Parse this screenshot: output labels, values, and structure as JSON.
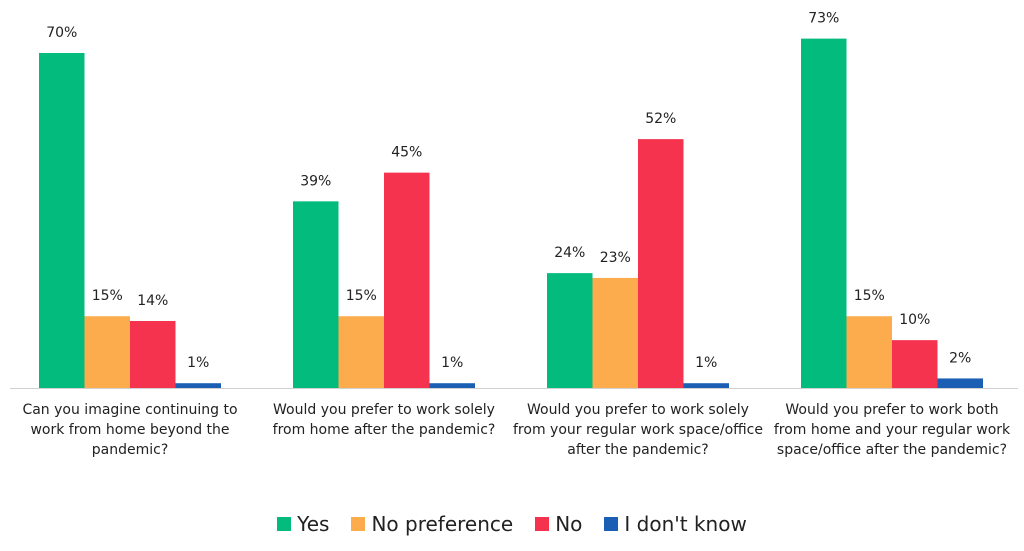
{
  "chart_data": {
    "type": "bar",
    "categories": [
      "Can you imagine continuing to work from home beyond the pandemic?",
      "Would you prefer to work solely from home after the pandemic?",
      "Would you prefer to work solely from your regular work space/office after the pandemic?",
      "Would you prefer to work both from home and your regular work space/office after the pandemic?"
    ],
    "series": [
      {
        "name": "Yes",
        "color": "#03bb7c",
        "values": [
          70,
          39,
          24,
          73
        ],
        "value_labels": [
          "70%",
          "39%",
          "24%",
          "73%"
        ]
      },
      {
        "name": "No preference",
        "color": "#fcac4c",
        "values": [
          15,
          15,
          23,
          15
        ],
        "value_labels": [
          "15%",
          "15%",
          "23%",
          "15%"
        ]
      },
      {
        "name": "No",
        "color": "#f5334f",
        "values": [
          14,
          45,
          52,
          10
        ],
        "value_labels": [
          "14%",
          "45%",
          "52%",
          "10%"
        ]
      },
      {
        "name": "I don't know",
        "color": "#1a5fb4",
        "values": [
          1,
          1,
          1,
          2
        ],
        "value_labels": [
          "1%",
          "1%",
          "1%",
          "2%"
        ]
      }
    ],
    "legend": "bottom"
  }
}
